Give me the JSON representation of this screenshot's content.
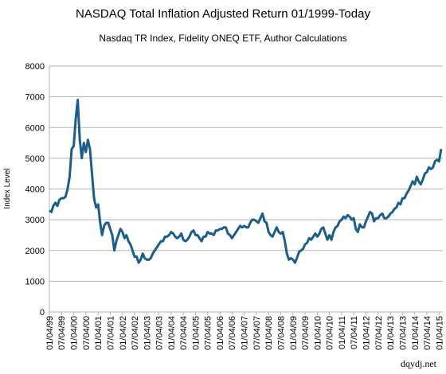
{
  "chart_data": {
    "type": "line",
    "title": "NASDAQ Total Inflation Adjusted Return 01/1999-Today",
    "subtitle": "Nasdaq TR Index, Fidelity ONEQ ETF, Author Calculations",
    "y_label": "Index Level",
    "source": "dqydj.net",
    "x": [
      "01/04/99",
      "02/04/99",
      "03/04/99",
      "04/04/99",
      "05/04/99",
      "06/04/99",
      "07/04/99",
      "08/04/99",
      "09/04/99",
      "10/04/99",
      "11/04/99",
      "12/04/99",
      "01/04/00",
      "02/04/00",
      "03/04/00",
      "04/04/00",
      "05/04/00",
      "06/04/00",
      "07/04/00",
      "08/04/00",
      "09/04/00",
      "10/04/00",
      "11/04/00",
      "12/04/00",
      "01/04/01",
      "02/04/01",
      "03/04/01",
      "04/04/01",
      "05/04/01",
      "06/04/01",
      "07/04/01",
      "08/04/01",
      "09/04/01",
      "10/04/01",
      "11/04/01",
      "12/04/01",
      "01/04/02",
      "02/04/02",
      "03/04/02",
      "04/04/02",
      "05/04/02",
      "06/04/02",
      "07/04/02",
      "08/04/02",
      "09/04/02",
      "10/04/02",
      "11/04/02",
      "12/04/02",
      "01/04/03",
      "02/04/03",
      "03/04/03",
      "04/04/03",
      "05/04/03",
      "06/04/03",
      "07/04/03",
      "08/04/03",
      "09/04/03",
      "10/04/03",
      "11/04/03",
      "12/04/03",
      "01/04/04",
      "02/04/04",
      "03/04/04",
      "04/04/04",
      "05/04/04",
      "06/04/04",
      "07/04/04",
      "08/04/04",
      "09/04/04",
      "10/04/04",
      "11/04/04",
      "12/04/04",
      "01/04/05",
      "02/04/05",
      "03/04/05",
      "04/04/05",
      "05/04/05",
      "06/04/05",
      "07/04/05",
      "08/04/05",
      "09/04/05",
      "10/04/05",
      "11/04/05",
      "12/04/05",
      "01/04/06",
      "02/04/06",
      "03/04/06",
      "04/04/06",
      "05/04/06",
      "06/04/06",
      "07/04/06",
      "08/04/06",
      "09/04/06",
      "10/04/06",
      "11/04/06",
      "12/04/06",
      "01/04/07",
      "02/04/07",
      "03/04/07",
      "04/04/07",
      "05/04/07",
      "06/04/07",
      "07/04/07",
      "08/04/07",
      "09/04/07",
      "10/04/07",
      "11/04/07",
      "12/04/07",
      "01/04/08",
      "02/04/08",
      "03/04/08",
      "04/04/08",
      "05/04/08",
      "06/04/08",
      "07/04/08",
      "08/04/08",
      "09/04/08",
      "10/04/08",
      "11/04/08",
      "12/04/08",
      "01/04/09",
      "02/04/09",
      "03/04/09",
      "04/04/09",
      "05/04/09",
      "06/04/09",
      "07/04/09",
      "08/04/09",
      "09/04/09",
      "10/04/09",
      "11/04/09",
      "12/04/09",
      "01/04/10",
      "02/04/10",
      "03/04/10",
      "04/04/10",
      "05/04/10",
      "06/04/10",
      "07/04/10",
      "08/04/10",
      "09/04/10",
      "10/04/10",
      "11/04/10",
      "12/04/10",
      "01/04/11",
      "02/04/11",
      "03/04/11",
      "04/04/11",
      "05/04/11",
      "06/04/11",
      "07/04/11",
      "08/04/11",
      "09/04/11",
      "10/04/11",
      "11/04/11",
      "12/04/11",
      "01/04/12",
      "02/04/12",
      "03/04/12",
      "04/04/12",
      "05/04/12",
      "06/04/12",
      "07/04/12",
      "08/04/12",
      "09/04/12",
      "10/04/12",
      "11/04/12",
      "12/04/12",
      "01/04/13",
      "02/04/13",
      "03/04/13",
      "04/04/13",
      "05/04/13",
      "06/04/13",
      "07/04/13",
      "08/04/13",
      "09/04/13",
      "10/04/13",
      "11/04/13",
      "12/04/13",
      "01/04/14",
      "02/04/14",
      "03/04/14",
      "04/04/14",
      "05/04/14",
      "06/04/14",
      "07/04/14",
      "08/04/14",
      "09/04/14",
      "10/04/14",
      "11/04/14",
      "12/04/14",
      "01/04/15",
      "02/04/15"
    ],
    "series": [
      {
        "name": "Index Level",
        "color": "#1b5e8c",
        "values": [
          3300,
          3250,
          3450,
          3550,
          3450,
          3650,
          3700,
          3700,
          3750,
          4000,
          4400,
          5300,
          5400,
          6300,
          6900,
          5600,
          5000,
          5500,
          5200,
          5600,
          5300,
          4500,
          3700,
          3400,
          3500,
          2900,
          2500,
          2800,
          2900,
          2900,
          2700,
          2500,
          2000,
          2300,
          2500,
          2700,
          2600,
          2400,
          2500,
          2300,
          2200,
          2000,
          1800,
          1800,
          1600,
          1700,
          1900,
          1750,
          1700,
          1700,
          1750,
          1900,
          2000,
          2100,
          2200,
          2300,
          2300,
          2450,
          2450,
          2500,
          2600,
          2550,
          2450,
          2400,
          2450,
          2550,
          2350,
          2300,
          2350,
          2450,
          2600,
          2650,
          2500,
          2500,
          2400,
          2300,
          2450,
          2450,
          2600,
          2550,
          2550,
          2500,
          2650,
          2650,
          2700,
          2700,
          2750,
          2750,
          2550,
          2500,
          2400,
          2500,
          2600,
          2700,
          2800,
          2750,
          2800,
          2750,
          2750,
          2900,
          3000,
          3000,
          2950,
          2900,
          3050,
          3200,
          2950,
          2900,
          2600,
          2500,
          2450,
          2600,
          2750,
          2600,
          2550,
          2600,
          2300,
          1900,
          1700,
          1750,
          1700,
          1600,
          1750,
          1950,
          2000,
          2050,
          2200,
          2250,
          2400,
          2350,
          2450,
          2550,
          2450,
          2550,
          2700,
          2750,
          2550,
          2350,
          2500,
          2350,
          2600,
          2750,
          2800,
          2950,
          3000,
          3100,
          3050,
          3150,
          3100,
          3000,
          3050,
          2700,
          2600,
          2850,
          2750,
          2750,
          2950,
          3100,
          3250,
          3200,
          2950,
          3050,
          3050,
          3150,
          3200,
          3050,
          3050,
          3100,
          3200,
          3250,
          3350,
          3400,
          3550,
          3500,
          3700,
          3700,
          3850,
          3950,
          4100,
          4250,
          4150,
          4400,
          4250,
          4150,
          4300,
          4500,
          4550,
          4700,
          4650,
          4700,
          4900,
          4950,
          4900,
          5300
        ]
      }
    ],
    "xticks": [
      "01/04/99",
      "07/04/99",
      "01/04/00",
      "07/04/00",
      "01/04/01",
      "07/04/01",
      "01/04/02",
      "07/04/02",
      "01/04/03",
      "07/04/03",
      "01/04/04",
      "07/04/04",
      "01/04/05",
      "07/04/05",
      "01/04/06",
      "07/04/06",
      "01/04/07",
      "07/04/07",
      "01/04/08",
      "07/04/08",
      "01/04/09",
      "07/04/09",
      "01/04/10",
      "07/04/10",
      "01/04/11",
      "07/04/11",
      "01/04/12",
      "07/04/12",
      "01/04/13",
      "07/04/13",
      "01/04/14",
      "07/04/14",
      "01/04/15"
    ],
    "xlim": [
      "01/04/99",
      "03/01/15"
    ],
    "ylim": [
      0,
      8000
    ],
    "yticks": [
      0,
      1000,
      2000,
      3000,
      4000,
      5000,
      6000,
      7000,
      8000
    ],
    "grid": true
  }
}
